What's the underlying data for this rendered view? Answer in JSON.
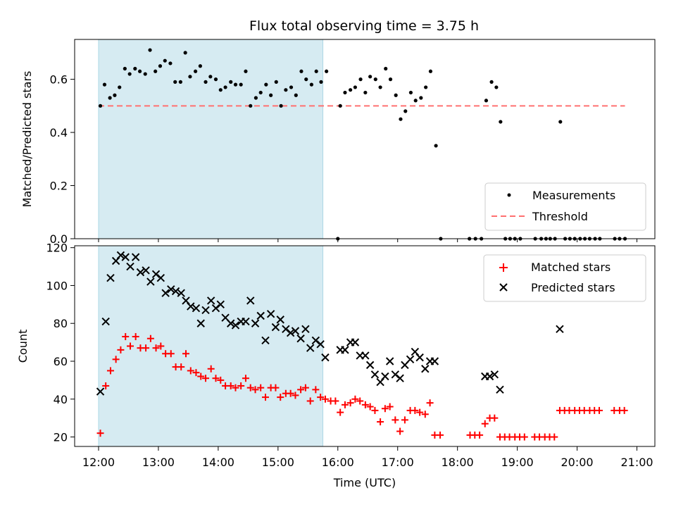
{
  "chart_data": [
    {
      "type": "scatter",
      "title": "Flux total observing time = 3.75 h",
      "xlabel": "",
      "ylabel": "Matched/Predicted stars",
      "ylim": [
        0,
        0.75
      ],
      "y_ticks": [
        "0.0",
        "0.2",
        "0.4",
        "0.6"
      ],
      "y_tick_values": [
        0,
        0.2,
        0.4,
        0.6
      ],
      "x_unit": "hours since 12:00 UTC",
      "xlim": [
        -0.4,
        9.3
      ],
      "shaded_span": [
        0.0,
        3.75
      ],
      "threshold": {
        "name": "Threshold",
        "value": 0.5,
        "x_range": [
          0.0,
          8.8
        ],
        "color": "#ff7070"
      },
      "legend": {
        "location": "lower right",
        "entries": [
          "Measurements",
          "Threshold"
        ]
      },
      "series": [
        {
          "name": "Measurements",
          "color": "#000000",
          "points": [
            [
              0.03,
              0.5
            ],
            [
              0.1,
              0.58
            ],
            [
              0.19,
              0.53
            ],
            [
              0.27,
              0.54
            ],
            [
              0.35,
              0.57
            ],
            [
              0.44,
              0.64
            ],
            [
              0.52,
              0.62
            ],
            [
              0.61,
              0.64
            ],
            [
              0.69,
              0.63
            ],
            [
              0.78,
              0.62
            ],
            [
              0.86,
              0.71
            ],
            [
              0.95,
              0.63
            ],
            [
              1.03,
              0.65
            ],
            [
              1.11,
              0.67
            ],
            [
              1.2,
              0.66
            ],
            [
              1.28,
              0.59
            ],
            [
              1.37,
              0.59
            ],
            [
              1.45,
              0.7
            ],
            [
              1.53,
              0.61
            ],
            [
              1.62,
              0.63
            ],
            [
              1.7,
              0.65
            ],
            [
              1.79,
              0.59
            ],
            [
              1.87,
              0.61
            ],
            [
              1.96,
              0.6
            ],
            [
              2.04,
              0.56
            ],
            [
              2.12,
              0.57
            ],
            [
              2.21,
              0.59
            ],
            [
              2.29,
              0.58
            ],
            [
              2.38,
              0.58
            ],
            [
              2.46,
              0.63
            ],
            [
              2.54,
              0.5
            ],
            [
              2.63,
              0.53
            ],
            [
              2.71,
              0.55
            ],
            [
              2.8,
              0.58
            ],
            [
              2.88,
              0.54
            ],
            [
              2.97,
              0.59
            ],
            [
              3.05,
              0.5
            ],
            [
              3.13,
              0.56
            ],
            [
              3.22,
              0.57
            ],
            [
              3.3,
              0.54
            ],
            [
              3.39,
              0.63
            ],
            [
              3.47,
              0.6
            ],
            [
              3.56,
              0.58
            ],
            [
              3.64,
              0.63
            ],
            [
              3.72,
              0.59
            ],
            [
              3.81,
              0.63
            ],
            [
              4.0,
              0.0
            ],
            [
              4.04,
              0.5
            ],
            [
              4.12,
              0.55
            ],
            [
              4.21,
              0.56
            ],
            [
              4.29,
              0.57
            ],
            [
              4.38,
              0.6
            ],
            [
              4.46,
              0.55
            ],
            [
              4.54,
              0.61
            ],
            [
              4.63,
              0.6
            ],
            [
              4.71,
              0.57
            ],
            [
              4.8,
              0.64
            ],
            [
              4.88,
              0.6
            ],
            [
              4.97,
              0.54
            ],
            [
              5.05,
              0.45
            ],
            [
              5.13,
              0.48
            ],
            [
              5.22,
              0.55
            ],
            [
              5.3,
              0.52
            ],
            [
              5.39,
              0.53
            ],
            [
              5.47,
              0.57
            ],
            [
              5.55,
              0.63
            ],
            [
              5.64,
              0.35
            ],
            [
              5.72,
              0.0
            ],
            [
              6.2,
              0.0
            ],
            [
              6.3,
              0.0
            ],
            [
              6.4,
              0.0
            ],
            [
              6.48,
              0.52
            ],
            [
              6.57,
              0.59
            ],
            [
              6.65,
              0.57
            ],
            [
              6.72,
              0.44
            ],
            [
              6.8,
              0.0
            ],
            [
              6.88,
              0.0
            ],
            [
              6.96,
              0.0
            ],
            [
              7.05,
              0.0
            ],
            [
              7.3,
              0.0
            ],
            [
              7.4,
              0.0
            ],
            [
              7.48,
              0.0
            ],
            [
              7.55,
              0.0
            ],
            [
              7.63,
              0.0
            ],
            [
              7.72,
              0.44
            ],
            [
              7.8,
              0.0
            ],
            [
              7.88,
              0.0
            ],
            [
              7.96,
              0.0
            ],
            [
              8.05,
              0.0
            ],
            [
              8.13,
              0.0
            ],
            [
              8.21,
              0.0
            ],
            [
              8.3,
              0.0
            ],
            [
              8.38,
              0.0
            ],
            [
              8.63,
              0.0
            ],
            [
              8.71,
              0.0
            ],
            [
              8.8,
              0.0
            ]
          ]
        }
      ]
    },
    {
      "type": "scatter",
      "xlabel": "Time (UTC)",
      "ylabel": "Count",
      "ylim": [
        15,
        121
      ],
      "y_ticks": [
        "20",
        "40",
        "60",
        "80",
        "100",
        "120"
      ],
      "y_tick_values": [
        20,
        40,
        60,
        80,
        100,
        120
      ],
      "x_unit": "hours since 12:00 UTC",
      "xlim": [
        -0.4,
        9.3
      ],
      "x_ticks": [
        "12:00",
        "13:00",
        "14:00",
        "15:00",
        "16:00",
        "17:00",
        "18:00",
        "19:00",
        "20:00",
        "21:00"
      ],
      "x_tick_values": [
        0,
        1,
        2,
        3,
        4,
        5,
        6,
        7,
        8,
        9
      ],
      "shaded_span": [
        0.0,
        3.75
      ],
      "legend": {
        "location": "upper right",
        "entries": [
          "Matched stars",
          "Predicted stars"
        ]
      },
      "series": [
        {
          "name": "Matched stars",
          "color": "#ff0000",
          "marker": "plus",
          "points": [
            [
              0.03,
              22
            ],
            [
              0.12,
              47
            ],
            [
              0.2,
              55
            ],
            [
              0.29,
              61
            ],
            [
              0.37,
              66
            ],
            [
              0.45,
              73
            ],
            [
              0.53,
              68
            ],
            [
              0.62,
              73
            ],
            [
              0.7,
              67
            ],
            [
              0.79,
              67
            ],
            [
              0.87,
              72
            ],
            [
              0.96,
              67
            ],
            [
              1.04,
              68
            ],
            [
              1.12,
              64
            ],
            [
              1.21,
              64
            ],
            [
              1.29,
              57
            ],
            [
              1.38,
              57
            ],
            [
              1.46,
              64
            ],
            [
              1.54,
              55
            ],
            [
              1.63,
              54
            ],
            [
              1.71,
              52
            ],
            [
              1.79,
              51
            ],
            [
              1.88,
              56
            ],
            [
              1.96,
              51
            ],
            [
              2.04,
              50
            ],
            [
              2.12,
              47
            ],
            [
              2.21,
              47
            ],
            [
              2.29,
              46
            ],
            [
              2.38,
              47
            ],
            [
              2.46,
              51
            ],
            [
              2.54,
              46
            ],
            [
              2.62,
              45
            ],
            [
              2.71,
              46
            ],
            [
              2.79,
              41
            ],
            [
              2.88,
              46
            ],
            [
              2.96,
              46
            ],
            [
              3.04,
              41
            ],
            [
              3.13,
              43
            ],
            [
              3.21,
              43
            ],
            [
              3.29,
              42
            ],
            [
              3.38,
              45
            ],
            [
              3.46,
              46
            ],
            [
              3.54,
              39
            ],
            [
              3.63,
              45
            ],
            [
              3.71,
              41
            ],
            [
              3.79,
              40
            ],
            [
              3.88,
              39
            ],
            [
              3.96,
              39
            ],
            [
              4.04,
              33
            ],
            [
              4.12,
              37
            ],
            [
              4.21,
              38
            ],
            [
              4.29,
              40
            ],
            [
              4.37,
              39
            ],
            [
              4.46,
              37
            ],
            [
              4.54,
              36
            ],
            [
              4.62,
              34
            ],
            [
              4.71,
              28
            ],
            [
              4.79,
              35
            ],
            [
              4.87,
              36
            ],
            [
              4.96,
              29
            ],
            [
              5.04,
              23
            ],
            [
              5.12,
              29
            ],
            [
              5.21,
              34
            ],
            [
              5.29,
              34
            ],
            [
              5.37,
              33
            ],
            [
              5.46,
              32
            ],
            [
              5.54,
              38
            ],
            [
              5.62,
              21
            ],
            [
              5.71,
              21
            ],
            [
              6.21,
              21
            ],
            [
              6.29,
              21
            ],
            [
              6.37,
              21
            ],
            [
              6.46,
              27
            ],
            [
              6.54,
              30
            ],
            [
              6.62,
              30
            ],
            [
              6.71,
              20
            ],
            [
              6.79,
              20
            ],
            [
              6.87,
              20
            ],
            [
              6.96,
              20
            ],
            [
              7.04,
              20
            ],
            [
              7.12,
              20
            ],
            [
              7.29,
              20
            ],
            [
              7.37,
              20
            ],
            [
              7.46,
              20
            ],
            [
              7.54,
              20
            ],
            [
              7.62,
              20
            ],
            [
              7.71,
              34
            ],
            [
              7.79,
              34
            ],
            [
              7.87,
              34
            ],
            [
              7.96,
              34
            ],
            [
              8.04,
              34
            ],
            [
              8.12,
              34
            ],
            [
              8.21,
              34
            ],
            [
              8.29,
              34
            ],
            [
              8.37,
              34
            ],
            [
              8.62,
              34
            ],
            [
              8.71,
              34
            ],
            [
              8.79,
              34
            ]
          ]
        },
        {
          "name": "Predicted stars",
          "color": "#000000",
          "marker": "x",
          "points": [
            [
              0.03,
              44
            ],
            [
              0.12,
              81
            ],
            [
              0.2,
              104
            ],
            [
              0.29,
              113
            ],
            [
              0.37,
              116
            ],
            [
              0.45,
              115
            ],
            [
              0.53,
              110
            ],
            [
              0.62,
              115
            ],
            [
              0.7,
              107
            ],
            [
              0.79,
              108
            ],
            [
              0.87,
              102
            ],
            [
              0.96,
              106
            ],
            [
              1.04,
              104
            ],
            [
              1.12,
              96
            ],
            [
              1.21,
              98
            ],
            [
              1.29,
              97
            ],
            [
              1.38,
              96
            ],
            [
              1.46,
              92
            ],
            [
              1.54,
              89
            ],
            [
              1.63,
              88
            ],
            [
              1.71,
              80
            ],
            [
              1.79,
              87
            ],
            [
              1.88,
              92
            ],
            [
              1.96,
              88
            ],
            [
              2.04,
              90
            ],
            [
              2.12,
              83
            ],
            [
              2.21,
              80
            ],
            [
              2.29,
              79
            ],
            [
              2.38,
              81
            ],
            [
              2.46,
              81
            ],
            [
              2.54,
              92
            ],
            [
              2.62,
              80
            ],
            [
              2.71,
              84
            ],
            [
              2.79,
              71
            ],
            [
              2.88,
              85
            ],
            [
              2.96,
              78
            ],
            [
              3.04,
              82
            ],
            [
              3.13,
              77
            ],
            [
              3.21,
              75
            ],
            [
              3.29,
              76
            ],
            [
              3.38,
              72
            ],
            [
              3.46,
              77
            ],
            [
              3.54,
              67
            ],
            [
              3.63,
              71
            ],
            [
              3.71,
              69
            ],
            [
              3.79,
              62
            ],
            [
              4.04,
              66
            ],
            [
              4.12,
              66
            ],
            [
              4.21,
              70
            ],
            [
              4.29,
              70
            ],
            [
              4.37,
              63
            ],
            [
              4.46,
              63
            ],
            [
              4.54,
              58
            ],
            [
              4.62,
              53
            ],
            [
              4.71,
              49
            ],
            [
              4.79,
              52
            ],
            [
              4.87,
              60
            ],
            [
              4.96,
              53
            ],
            [
              5.04,
              51
            ],
            [
              5.12,
              58
            ],
            [
              5.21,
              61
            ],
            [
              5.29,
              65
            ],
            [
              5.37,
              62
            ],
            [
              5.46,
              56
            ],
            [
              5.54,
              60
            ],
            [
              5.62,
              60
            ],
            [
              6.46,
              52
            ],
            [
              6.54,
              52
            ],
            [
              6.62,
              53
            ],
            [
              6.71,
              45
            ],
            [
              7.71,
              77
            ]
          ]
        }
      ]
    }
  ]
}
